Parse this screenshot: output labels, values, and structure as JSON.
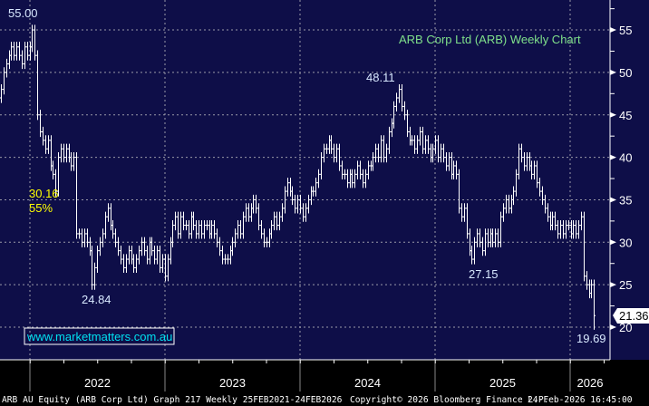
{
  "chart_data": {
    "type": "ohlc",
    "title": "ARB Corp Ltd (ARB) Weekly Chart",
    "ticker": "ARB AU Equity",
    "ylim": [
      18,
      58
    ],
    "yticks": [
      20,
      25,
      30,
      35,
      40,
      45,
      50,
      55
    ],
    "xticks": [
      "2022",
      "2023",
      "2024",
      "2025",
      "2026"
    ],
    "last_price": "21.36",
    "closes": [
      48,
      50,
      51,
      52,
      53,
      52,
      53,
      52,
      51,
      53,
      52,
      53,
      55,
      52,
      45,
      43,
      42,
      41,
      42,
      39,
      38,
      36,
      40,
      41,
      40,
      41,
      40,
      39,
      40,
      31,
      31,
      30,
      31,
      30,
      29,
      25,
      27,
      29,
      30,
      31,
      33,
      34,
      32,
      31,
      30,
      29,
      28,
      27,
      28,
      29,
      28,
      27,
      28,
      29,
      30,
      29,
      28,
      30,
      29,
      28,
      29,
      27,
      28,
      26,
      28,
      30,
      32,
      33,
      31,
      33,
      32,
      32,
      31,
      33,
      32,
      31,
      32,
      31,
      32,
      32,
      31,
      32,
      31,
      30,
      29,
      28,
      28,
      28,
      29,
      30,
      31,
      32,
      31,
      33,
      34,
      33,
      34,
      35,
      34,
      32,
      31,
      30,
      30,
      31,
      32,
      33,
      32,
      33,
      34,
      36,
      37,
      36,
      35,
      34,
      35,
      34,
      33,
      34,
      35,
      36,
      36,
      37,
      38,
      40,
      41,
      41,
      42,
      41,
      40,
      41,
      39,
      38,
      38,
      37,
      38,
      37,
      38,
      39,
      38,
      37,
      38,
      39,
      39,
      40,
      41,
      40,
      42,
      40,
      41,
      43,
      44,
      46,
      47,
      48,
      46,
      45,
      43,
      42,
      42,
      41,
      42,
      43,
      41,
      42,
      41,
      40,
      41,
      42,
      40,
      41,
      40,
      39,
      40,
      38,
      39,
      38,
      34,
      33,
      34,
      31,
      29,
      28,
      30,
      31,
      30,
      29,
      31,
      30,
      31,
      30,
      31,
      30,
      33,
      34,
      35,
      34,
      35,
      36,
      38,
      41,
      40,
      39,
      40,
      39,
      38,
      39,
      37,
      36,
      35,
      34,
      33,
      32,
      33,
      32,
      31,
      32,
      31,
      32,
      32,
      31,
      32,
      31,
      32,
      33,
      26,
      25,
      24,
      25,
      21.36
    ],
    "final_low": 19.69,
    "annotations": [
      {
        "text": "55.00",
        "color": "#d8e8ff"
      },
      {
        "text": "30.16",
        "color": "#ffff00"
      },
      {
        "text": "55%",
        "color": "#ffff00"
      },
      {
        "text": "24.84",
        "color": "#d8e8ff"
      },
      {
        "text": "48.11",
        "color": "#d8e8ff"
      },
      {
        "text": "27.15",
        "color": "#d8e8ff"
      },
      {
        "text": "19.69",
        "color": "#d8e8ff"
      }
    ]
  },
  "watermark": "www.marketmatters.com.au",
  "footer": {
    "left": "ARB AU Equity (ARB Corp Ltd) Graph 217 Weekly 25FEB2021-24FEB2026",
    "copyright": "Copyright© 2026 Bloomberg Finance L.P.",
    "timestamp": "24-Feb-2026 16:45:00"
  },
  "colors": {
    "background": "#0e0e48",
    "bars": "#ffffff",
    "title": "#7fe08a",
    "watermark": "#00e0f0"
  }
}
